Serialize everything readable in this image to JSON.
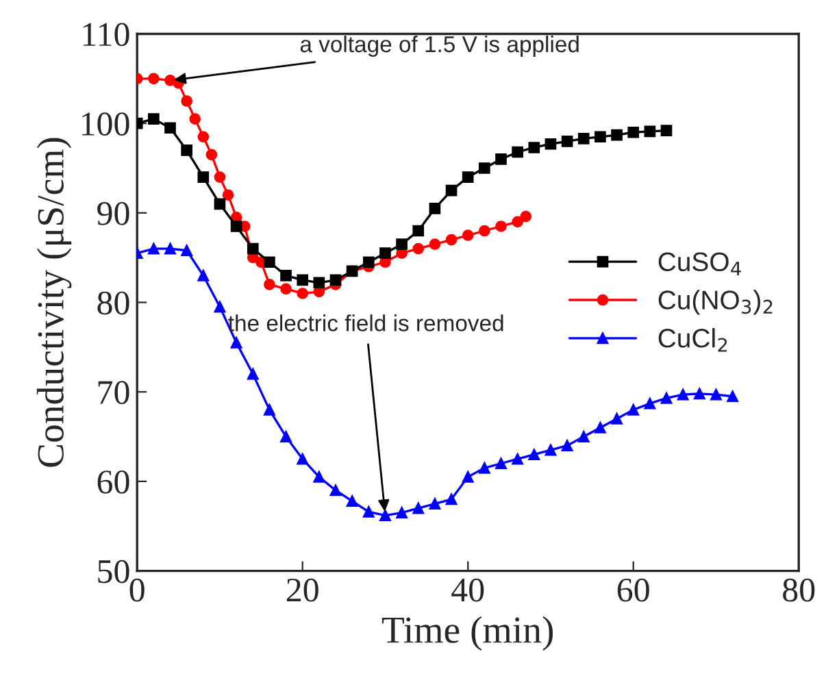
{
  "chart_data": {
    "type": "line",
    "xlabel": "Time (min)",
    "ylabel": "Conductivity (μS/cm)",
    "xlim": [
      0,
      80
    ],
    "xticks": [
      0,
      20,
      40,
      60,
      80
    ],
    "ylim": [
      50,
      110
    ],
    "yticks": [
      50,
      60,
      70,
      80,
      90,
      100,
      110
    ],
    "grid": false,
    "legend": "right",
    "series": [
      {
        "name": "CuSO$_{4}$",
        "color": "#000000",
        "marker": "square",
        "x": [
          0,
          2,
          4,
          6,
          8,
          10,
          12,
          14,
          16,
          18,
          20,
          22,
          24,
          26,
          28,
          30,
          32,
          34,
          36,
          38,
          40,
          42,
          44,
          46,
          48,
          50,
          52,
          54,
          56,
          58,
          60,
          62,
          64
        ],
        "values": [
          100,
          100.5,
          99.5,
          97,
          94,
          91,
          88.5,
          86,
          84.5,
          83,
          82.5,
          82.2,
          82.5,
          83.5,
          84.5,
          85.5,
          86.5,
          88,
          90.5,
          92.5,
          94,
          95,
          96,
          96.8,
          97.3,
          97.7,
          98,
          98.3,
          98.5,
          98.7,
          99,
          99.1,
          99.2
        ]
      },
      {
        "name": "Cu(NO$_{3}$)$_{2}$",
        "color": "#ff0000",
        "marker": "circle",
        "x": [
          0,
          2,
          4,
          5,
          6,
          7,
          8,
          9,
          10,
          11,
          12,
          13,
          14,
          15,
          16,
          18,
          20,
          22,
          24,
          26,
          28,
          30,
          32,
          34,
          36,
          38,
          40,
          42,
          44,
          46,
          47
        ],
        "values": [
          105,
          105,
          104.8,
          104.5,
          102.5,
          100.5,
          98.5,
          96.5,
          94,
          92,
          89.5,
          88.5,
          85,
          84.5,
          82,
          81.5,
          81,
          81.2,
          82,
          83.5,
          84,
          84.5,
          85.5,
          86,
          86.5,
          87,
          87.5,
          88,
          88.5,
          89,
          89.6
        ]
      },
      {
        "name": "CuCl$_{2}$",
        "color": "#0000ff",
        "marker": "triangle",
        "x": [
          0,
          2,
          4,
          6,
          8,
          10,
          12,
          14,
          16,
          18,
          20,
          22,
          24,
          26,
          28,
          30,
          32,
          34,
          36,
          38,
          40,
          42,
          44,
          46,
          48,
          50,
          52,
          54,
          56,
          58,
          60,
          62,
          64,
          66,
          68,
          70,
          72
        ],
        "values": [
          85.5,
          86,
          86,
          85.8,
          83,
          79.5,
          75.5,
          72,
          68,
          65,
          62.5,
          60.5,
          59,
          57.8,
          56.6,
          56.2,
          56.5,
          57,
          57.5,
          58,
          60.5,
          61.5,
          62,
          62.5,
          63,
          63.5,
          64,
          65,
          66,
          67,
          68,
          68.7,
          69.3,
          69.7,
          69.8,
          69.7,
          69.5
        ]
      }
    ],
    "annotations": [
      {
        "text": "a voltage of 1.5 V is applied",
        "x": 4,
        "y": 104.8
      },
      {
        "text": "the electric field is removed",
        "x": 30,
        "y": 56.2
      }
    ]
  }
}
